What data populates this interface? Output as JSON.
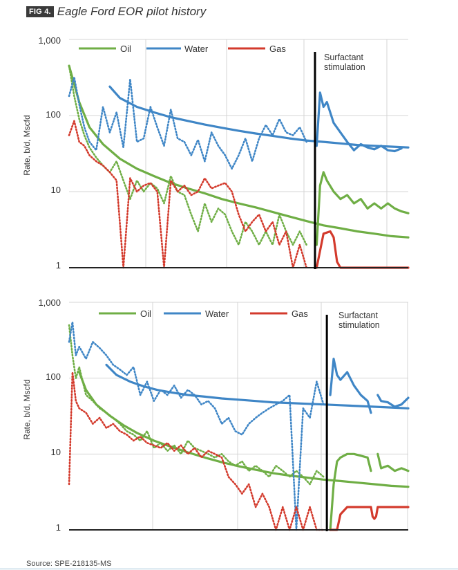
{
  "figure": {
    "badge": "FIG 4.",
    "title": "Eagle Ford EOR pilot history",
    "source": "Source: SPE-218135-MS"
  },
  "colors": {
    "oil": "#6fae45",
    "water": "#3f86c6",
    "gas": "#d33a2c",
    "axis": "#222222",
    "grid": "#d4d4d4",
    "event": "#000000"
  },
  "chart_data": [
    {
      "type": "line",
      "title": "",
      "xlabel": "",
      "ylabel": "Rate, b/d, Mscfd",
      "y_scale": "log",
      "ylim": [
        1,
        1000
      ],
      "y_ticks": [
        "1",
        "10",
        "100",
        "1,000"
      ],
      "x_unit": "relative time (unlabeled)",
      "xlim": [
        0,
        100
      ],
      "grid": true,
      "legend": {
        "position": "top",
        "entries": [
          "Oil",
          "Water",
          "Gas"
        ]
      },
      "event": {
        "x": 72.5,
        "label_lines": [
          "Surfactant",
          "stimulation"
        ]
      },
      "series": [
        {
          "name": "Oil",
          "key": "oil",
          "style": "dotted",
          "x": [
            0,
            1.5,
            3,
            4.5,
            6,
            8,
            10,
            12,
            14,
            16,
            18,
            20,
            22,
            24,
            26,
            28,
            30,
            32,
            34,
            36,
            38,
            40,
            42,
            44,
            46,
            48,
            50,
            52,
            54,
            56,
            58,
            60,
            62,
            64,
            66,
            68,
            70
          ],
          "y": [
            450,
            180,
            90,
            55,
            38,
            28,
            22,
            18,
            25,
            14,
            8,
            14,
            10,
            13,
            11,
            7,
            16,
            10,
            9,
            5,
            3,
            7,
            4,
            6,
            5,
            3,
            2,
            4,
            3,
            2,
            3,
            2,
            5,
            3,
            2,
            3,
            2
          ]
        },
        {
          "name": "Oil",
          "key": "oil",
          "style": "solid",
          "x": [
            0,
            3,
            6,
            10,
            15,
            20,
            25,
            30,
            35,
            40,
            45,
            50,
            55,
            60,
            65,
            70,
            75,
            80,
            85,
            90,
            95,
            100
          ],
          "y": [
            450,
            150,
            70,
            42,
            27,
            20,
            16,
            13,
            11,
            9.5,
            8,
            7,
            6.2,
            5.4,
            4.7,
            4.1,
            3.6,
            3.3,
            3.0,
            2.8,
            2.6,
            2.5
          ]
        },
        {
          "name": "Oil",
          "key": "oil",
          "style": "solid",
          "x": [
            73,
            74,
            75,
            76,
            78,
            80,
            82,
            84,
            86,
            88,
            90,
            92,
            94,
            96,
            98,
            100
          ],
          "y": [
            2,
            12,
            18,
            14,
            10,
            8,
            9,
            7,
            8,
            6,
            7,
            6,
            7,
            6,
            5.5,
            5.2
          ]
        },
        {
          "name": "Water",
          "key": "water",
          "style": "dotted",
          "x": [
            0,
            1.5,
            3,
            4.5,
            6,
            8,
            10,
            12,
            14,
            16,
            18,
            20,
            22,
            24,
            26,
            28,
            30,
            32,
            34,
            36,
            38,
            40,
            42,
            44,
            46,
            48,
            50,
            52,
            54,
            56,
            58,
            60,
            62,
            64,
            66,
            68,
            70
          ],
          "y": [
            180,
            320,
            140,
            70,
            45,
            35,
            130,
            60,
            110,
            38,
            300,
            45,
            50,
            130,
            70,
            40,
            120,
            50,
            45,
            30,
            48,
            25,
            60,
            40,
            30,
            20,
            30,
            50,
            25,
            50,
            75,
            55,
            90,
            60,
            55,
            70,
            45
          ]
        },
        {
          "name": "Water",
          "key": "water",
          "style": "solid",
          "x": [
            12,
            15,
            20,
            25,
            30,
            35,
            40,
            45,
            50,
            55,
            60,
            65,
            70,
            75,
            80,
            85,
            90,
            95,
            100
          ],
          "y": [
            240,
            170,
            130,
            110,
            95,
            85,
            76,
            69,
            63,
            58,
            54,
            50,
            47,
            45,
            43,
            41,
            40,
            39,
            38
          ]
        },
        {
          "name": "Water",
          "key": "water",
          "style": "solid",
          "x": [
            73,
            74,
            75,
            76,
            78,
            80,
            82,
            84,
            86,
            88,
            90,
            92,
            94,
            96,
            98
          ],
          "y": [
            40,
            200,
            130,
            150,
            80,
            60,
            45,
            35,
            42,
            38,
            36,
            40,
            35,
            34,
            37
          ]
        },
        {
          "name": "Gas",
          "key": "gas",
          "style": "dotted",
          "x": [
            0,
            1.5,
            3,
            4.5,
            6,
            8,
            10,
            12,
            14,
            16,
            18,
            20,
            22,
            24,
            26,
            28,
            30,
            32,
            34,
            36,
            38,
            40,
            42,
            44,
            46,
            48,
            50,
            52,
            54,
            56,
            58,
            60,
            62,
            64,
            66,
            68,
            70
          ],
          "y": [
            55,
            85,
            45,
            40,
            30,
            25,
            22,
            18,
            14,
            1,
            15,
            10,
            12,
            13,
            10,
            1,
            14,
            10,
            12,
            9,
            10,
            15,
            11,
            12,
            13,
            10,
            5,
            3,
            4,
            5,
            3,
            4,
            2,
            3,
            1,
            2,
            1
          ]
        },
        {
          "name": "Gas",
          "key": "gas",
          "style": "solid",
          "x": [
            73,
            75,
            77,
            78,
            79,
            80,
            81,
            85,
            90,
            95,
            100
          ],
          "y": [
            1,
            2.8,
            3,
            2.5,
            1.2,
            1,
            1,
            1,
            1,
            1,
            1
          ]
        }
      ]
    },
    {
      "type": "line",
      "title": "",
      "xlabel": "",
      "ylabel": "Rate, b/d, Mscfd",
      "y_scale": "log",
      "ylim": [
        1,
        1000
      ],
      "y_ticks": [
        "1",
        "10",
        "100",
        "1,000"
      ],
      "x_unit": "relative time (unlabeled)",
      "xlim": [
        0,
        100
      ],
      "grid": true,
      "legend": {
        "position": "top",
        "entries": [
          "Oil",
          "Water",
          "Gas"
        ]
      },
      "event": {
        "x": 76,
        "label_lines": [
          "Surfactant",
          "stimulation"
        ]
      },
      "series": [
        {
          "name": "Oil",
          "key": "oil",
          "style": "dotted",
          "x": [
            0,
            1,
            2,
            3,
            5,
            7,
            9,
            11,
            13,
            15,
            17,
            19,
            21,
            23,
            25,
            27,
            29,
            31,
            33,
            35,
            37,
            39,
            41,
            43,
            45,
            47,
            49,
            51,
            53,
            55,
            57,
            59,
            61,
            63,
            65,
            67,
            69,
            71,
            73,
            75
          ],
          "y": [
            500,
            200,
            100,
            140,
            60,
            50,
            40,
            35,
            30,
            25,
            20,
            18,
            15,
            20,
            12,
            14,
            11,
            13,
            10,
            15,
            12,
            11,
            10,
            9,
            10,
            8,
            7,
            8,
            6,
            7,
            6,
            5,
            7,
            6,
            5,
            6,
            5,
            4,
            6,
            5
          ]
        },
        {
          "name": "Oil",
          "key": "oil",
          "style": "solid",
          "x": [
            3,
            5,
            8,
            12,
            16,
            20,
            25,
            30,
            35,
            40,
            45,
            50,
            55,
            60,
            65,
            70,
            75,
            80,
            85,
            90,
            95,
            100
          ],
          "y": [
            120,
            70,
            45,
            32,
            24,
            19,
            15,
            12.5,
            10.5,
            9.0,
            7.8,
            6.9,
            6.2,
            5.6,
            5.2,
            4.9,
            4.6,
            4.4,
            4.2,
            4.0,
            3.8,
            3.7
          ]
        },
        {
          "name": "Oil",
          "key": "oil",
          "style": "solid",
          "x": [
            77,
            78,
            79,
            80,
            82,
            84,
            86,
            88,
            89,
            90,
            91,
            92,
            94,
            96,
            98,
            100
          ],
          "y": [
            1,
            4,
            8,
            9,
            10,
            10,
            9.5,
            9,
            6,
            null,
            10,
            6.5,
            7,
            6,
            6.5,
            6
          ]
        },
        {
          "name": "Water",
          "key": "water",
          "style": "dotted",
          "x": [
            0,
            1,
            2,
            3,
            5,
            7,
            9,
            11,
            13,
            15,
            17,
            19,
            21,
            23,
            25,
            27,
            29,
            31,
            33,
            35,
            37,
            39,
            41,
            43,
            45,
            47,
            49,
            51,
            53,
            55,
            57,
            59,
            61,
            63,
            65,
            67,
            69,
            71,
            73,
            75
          ],
          "y": [
            300,
            550,
            200,
            260,
            180,
            300,
            250,
            200,
            150,
            130,
            110,
            140,
            60,
            90,
            50,
            70,
            60,
            80,
            55,
            70,
            60,
            45,
            50,
            40,
            25,
            30,
            20,
            18,
            25,
            30,
            35,
            40,
            45,
            50,
            60,
            1,
            40,
            30,
            90,
            45
          ]
        },
        {
          "name": "Water",
          "key": "water",
          "style": "solid",
          "x": [
            11,
            14,
            18,
            22,
            26,
            30,
            35,
            40,
            45,
            50,
            55,
            60,
            65,
            70,
            75,
            80,
            85,
            90,
            95,
            100
          ],
          "y": [
            150,
            110,
            90,
            78,
            70,
            65,
            60,
            57,
            54,
            52,
            50,
            48,
            47,
            46,
            45,
            44,
            43,
            42,
            41,
            40
          ]
        },
        {
          "name": "Water",
          "key": "water",
          "style": "solid",
          "x": [
            77,
            78,
            79,
            80,
            82,
            84,
            86,
            88,
            89,
            90,
            91,
            92,
            94,
            96,
            98,
            100
          ],
          "y": [
            60,
            180,
            110,
            95,
            120,
            80,
            60,
            50,
            35,
            null,
            60,
            50,
            48,
            42,
            45,
            55
          ]
        },
        {
          "name": "Gas",
          "key": "gas",
          "style": "dotted",
          "x": [
            0,
            1,
            2,
            3,
            5,
            7,
            9,
            11,
            13,
            15,
            17,
            19,
            21,
            23,
            25,
            27,
            29,
            31,
            33,
            35,
            37,
            39,
            41,
            43,
            45,
            47,
            49,
            51,
            53,
            55,
            57,
            59,
            61,
            63,
            65,
            67,
            69,
            71,
            73,
            75
          ],
          "y": [
            4,
            120,
            50,
            40,
            35,
            25,
            30,
            22,
            25,
            20,
            18,
            15,
            17,
            14,
            13,
            12,
            14,
            11,
            13,
            10,
            12,
            9,
            11,
            10,
            9,
            5,
            4,
            3,
            4,
            2,
            3,
            2,
            1,
            2,
            1,
            2,
            1,
            2,
            1,
            1
          ]
        },
        {
          "name": "Gas",
          "key": "gas",
          "style": "solid",
          "x": [
            77,
            79,
            80,
            82,
            85,
            88,
            89,
            89.5,
            90,
            90.5,
            91,
            93,
            96,
            100
          ],
          "y": [
            1,
            1,
            1.6,
            2,
            2,
            2,
            2,
            1.5,
            1.4,
            1.5,
            2,
            2,
            2,
            2
          ]
        }
      ]
    }
  ]
}
